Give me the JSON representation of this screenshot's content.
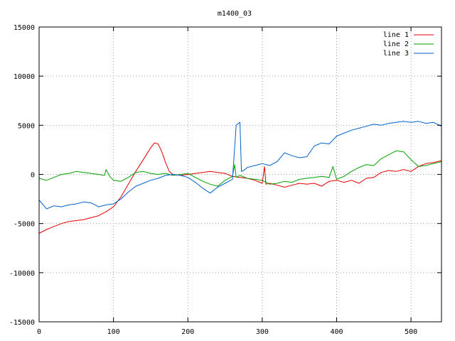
{
  "chart_data": {
    "type": "line",
    "title": "m1400_03",
    "xlabel": "",
    "ylabel": "",
    "xlim": [
      0,
      541
    ],
    "ylim": [
      -15000,
      15000
    ],
    "xticks": [
      0,
      100,
      200,
      300,
      400,
      500
    ],
    "yticks": [
      -15000,
      -10000,
      -5000,
      0,
      5000,
      10000,
      15000
    ],
    "grid": true,
    "legend_position": "top-right",
    "series": [
      {
        "name": "line 1",
        "color": "#e00000",
        "x": [
          0,
          10,
          20,
          30,
          40,
          50,
          60,
          70,
          80,
          90,
          100,
          110,
          120,
          130,
          140,
          150,
          155,
          160,
          165,
          170,
          175,
          180,
          190,
          200,
          210,
          220,
          230,
          240,
          250,
          260,
          270,
          280,
          290,
          300,
          303,
          305,
          310,
          320,
          330,
          340,
          350,
          360,
          370,
          380,
          390,
          400,
          410,
          420,
          430,
          440,
          450,
          460,
          470,
          480,
          490,
          500,
          510,
          520,
          530,
          541
        ],
        "y": [
          -6000,
          -5600,
          -5300,
          -5000,
          -4800,
          -4700,
          -4600,
          -4400,
          -4200,
          -3800,
          -3300,
          -2300,
          -1000,
          300,
          1500,
          2700,
          3200,
          3100,
          2300,
          1200,
          300,
          0,
          -100,
          0,
          100,
          200,
          300,
          200,
          100,
          -200,
          -300,
          -400,
          -600,
          -900,
          800,
          -1000,
          -900,
          -1100,
          -1300,
          -1100,
          -900,
          -1000,
          -900,
          -1200,
          -700,
          -600,
          -800,
          -600,
          -900,
          -400,
          -300,
          200,
          400,
          300,
          500,
          300,
          800,
          1100,
          1200,
          1400
        ]
      },
      {
        "name": "line 2",
        "color": "#00a000",
        "x": [
          0,
          10,
          20,
          30,
          40,
          50,
          60,
          70,
          80,
          88,
          90,
          95,
          100,
          110,
          120,
          130,
          140,
          150,
          160,
          170,
          180,
          190,
          200,
          210,
          220,
          230,
          240,
          250,
          260,
          263,
          265,
          270,
          280,
          290,
          300,
          310,
          320,
          330,
          340,
          350,
          360,
          370,
          380,
          390,
          395,
          400,
          410,
          420,
          430,
          440,
          450,
          460,
          470,
          480,
          490,
          500,
          510,
          520,
          530,
          541
        ],
        "y": [
          -400,
          -600,
          -300,
          0,
          100,
          300,
          200,
          100,
          0,
          -100,
          500,
          -200,
          -600,
          -700,
          -300,
          200,
          300,
          100,
          0,
          100,
          -100,
          0,
          100,
          -300,
          -700,
          -1000,
          -1200,
          -600,
          -200,
          1000,
          -300,
          -100,
          -400,
          -500,
          -600,
          -1000,
          -900,
          -700,
          -800,
          -500,
          -400,
          -300,
          -200,
          -300,
          800,
          -500,
          -200,
          300,
          700,
          1000,
          900,
          1600,
          2000,
          2400,
          2300,
          1500,
          800,
          900,
          1100,
          1300
        ]
      },
      {
        "name": "line 3",
        "color": "#0060d0",
        "x": [
          0,
          10,
          20,
          30,
          40,
          50,
          60,
          70,
          80,
          90,
          100,
          110,
          120,
          130,
          140,
          150,
          160,
          170,
          180,
          190,
          200,
          210,
          220,
          230,
          240,
          250,
          260,
          265,
          268,
          270,
          272,
          275,
          280,
          290,
          300,
          310,
          320,
          330,
          340,
          350,
          360,
          370,
          380,
          390,
          400,
          410,
          420,
          430,
          440,
          450,
          460,
          470,
          480,
          490,
          500,
          510,
          520,
          530,
          541
        ],
        "y": [
          -2600,
          -3500,
          -3200,
          -3300,
          -3100,
          -3000,
          -2800,
          -2900,
          -3300,
          -3100,
          -3000,
          -2500,
          -1800,
          -1200,
          -900,
          -600,
          -400,
          -100,
          0,
          -100,
          -300,
          -800,
          -1400,
          -1900,
          -1300,
          -900,
          -500,
          5000,
          5200,
          5300,
          300,
          400,
          700,
          900,
          1100,
          900,
          1300,
          2200,
          1900,
          1700,
          1800,
          2900,
          3200,
          3100,
          3900,
          4200,
          4500,
          4700,
          4900,
          5100,
          5000,
          5200,
          5300,
          5400,
          5300,
          5400,
          5200,
          5300,
          4900
        ]
      }
    ]
  }
}
